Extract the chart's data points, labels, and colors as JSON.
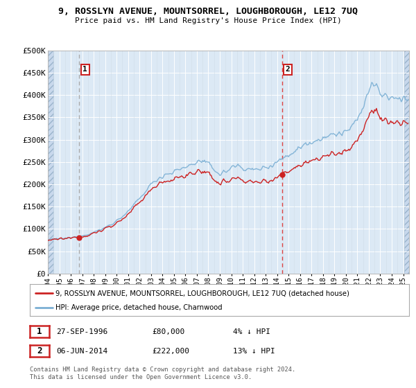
{
  "title": "9, ROSSLYN AVENUE, MOUNTSORREL, LOUGHBOROUGH, LE12 7UQ",
  "subtitle": "Price paid vs. HM Land Registry's House Price Index (HPI)",
  "bg_color": "#dce9f5",
  "red_line_color": "#cc2222",
  "blue_line_color": "#7aafd4",
  "vline1_color": "#aaaaaa",
  "vline2_color": "#dd4444",
  "marker_color": "#cc2222",
  "sale1_date_num": 1996.75,
  "sale1_price": 80000,
  "sale2_date_num": 2014.43,
  "sale2_price": 222000,
  "ylabel_ticks": [
    "£0",
    "£50K",
    "£100K",
    "£150K",
    "£200K",
    "£250K",
    "£300K",
    "£350K",
    "£400K",
    "£450K",
    "£500K"
  ],
  "ytick_values": [
    0,
    50000,
    100000,
    150000,
    200000,
    250000,
    300000,
    350000,
    400000,
    450000,
    500000
  ],
  "ylim": [
    0,
    500000
  ],
  "xlim_min": 1994.0,
  "xlim_max": 2025.5,
  "xtick_years": [
    1994,
    1995,
    1996,
    1997,
    1998,
    1999,
    2000,
    2001,
    2002,
    2003,
    2004,
    2005,
    2006,
    2007,
    2008,
    2009,
    2010,
    2011,
    2012,
    2013,
    2014,
    2015,
    2016,
    2017,
    2018,
    2019,
    2020,
    2021,
    2022,
    2023,
    2024,
    2025
  ],
  "legend_line1": "9, ROSSLYN AVENUE, MOUNTSORREL, LOUGHBOROUGH, LE12 7UQ (detached house)",
  "legend_line2": "HPI: Average price, detached house, Charnwood",
  "table_row1_num": "1",
  "table_row1_date": "27-SEP-1996",
  "table_row1_price": "£80,000",
  "table_row1_hpi": "4% ↓ HPI",
  "table_row2_num": "2",
  "table_row2_date": "06-JUN-2014",
  "table_row2_price": "£222,000",
  "table_row2_hpi": "13% ↓ HPI",
  "footer": "Contains HM Land Registry data © Crown copyright and database right 2024.\nThis data is licensed under the Open Government Licence v3.0."
}
